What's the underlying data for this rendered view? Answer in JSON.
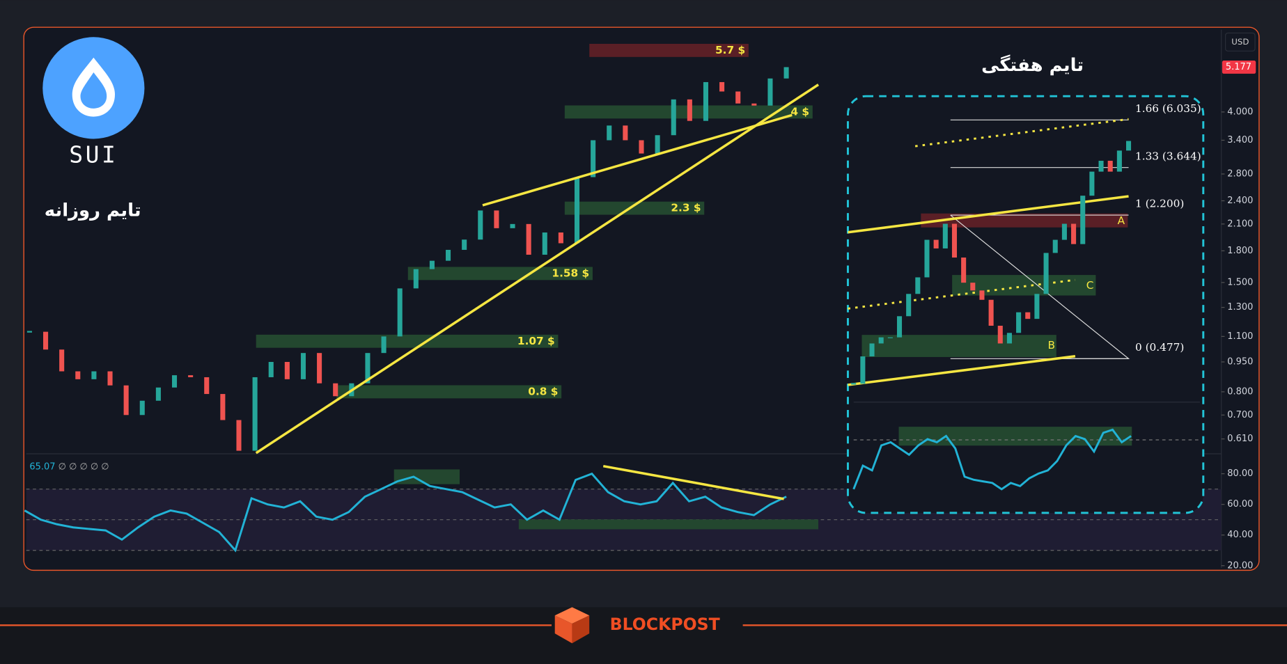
{
  "logo": {
    "text": "SUI"
  },
  "daily_label": "تایم روزانه",
  "brand": "BLOCKPOST",
  "currency": "USD",
  "chart_data": [
    {
      "type": "candlestick",
      "log_scale": true,
      "values": [
        1.13,
        1.02,
        0.9,
        0.86,
        0.9,
        0.83,
        0.7,
        0.76,
        0.82,
        0.88,
        0.87,
        0.79,
        0.68,
        0.57,
        0.87,
        0.95,
        0.86,
        1.0,
        0.84,
        0.78,
        0.84,
        1.0,
        1.1,
        1.45,
        1.62,
        1.7,
        1.81,
        1.92,
        2.27,
        2.05,
        2.1,
        1.76,
        2.0,
        1.88,
        2.75,
        3.4,
        3.7,
        3.4,
        3.15,
        3.5,
        4.3,
        3.8,
        4.75,
        4.5,
        4.2,
        4.15,
        4.85,
        5.177
      ],
      "last_price": 5.177,
      "ylim": [
        0.56,
        6.3
      ],
      "yticks": [
        {
          "value": 0.61,
          "label": "0.610"
        },
        {
          "value": 0.7,
          "label": "0.700"
        },
        {
          "value": 0.8,
          "label": "0.800"
        },
        {
          "value": 0.95,
          "label": "0.950"
        },
        {
          "value": 1.1,
          "label": "1.100"
        },
        {
          "value": 1.3,
          "label": "1.300"
        },
        {
          "value": 1.5,
          "label": "1.500"
        },
        {
          "value": 1.8,
          "label": "1.800"
        },
        {
          "value": 2.1,
          "label": "2.100"
        },
        {
          "value": 2.4,
          "label": "2.400"
        },
        {
          "value": 2.8,
          "label": "2.800"
        },
        {
          "value": 3.4,
          "label": "3.400"
        },
        {
          "value": 4,
          "label": "4.000"
        }
      ],
      "grid": false,
      "zones": [
        {
          "value": 5.7,
          "label": "5.7 $",
          "color": "#5a1f26"
        },
        {
          "value": 4,
          "label": "4 $",
          "color": "#23472f"
        },
        {
          "value": 2.3,
          "label": "2.3 $",
          "color": "#23472f"
        },
        {
          "value": 1.58,
          "label": "1.58 $",
          "color": "#23472f"
        },
        {
          "value": 1.07,
          "label": "1.07 $",
          "color": "#23472f"
        },
        {
          "value": 0.8,
          "label": "0.8 $",
          "color": "#23472f"
        }
      ],
      "up_color": "#26a69a",
      "down_color": "#ef5350"
    },
    {
      "type": "line",
      "color": "#22b3d6",
      "values": [
        56,
        50,
        47,
        45,
        44,
        43,
        37,
        45,
        52,
        56,
        54,
        48,
        42,
        30,
        64,
        60,
        58,
        62,
        52,
        50,
        55,
        65,
        70,
        75,
        78,
        72,
        70,
        68,
        63,
        58,
        60,
        50,
        56,
        50,
        76,
        80,
        68,
        62,
        60,
        62,
        74,
        62,
        65,
        58,
        55,
        53,
        60,
        65.07
      ],
      "last_value": 65.07,
      "indicator_values": "∅ ∅ ∅ ∅ ∅",
      "ylim": [
        17,
        93
      ],
      "yticks": [
        {
          "value": 20,
          "label": "20.00"
        },
        {
          "value": 40,
          "label": "40.00"
        },
        {
          "value": 60,
          "label": "60.00"
        },
        {
          "value": 80,
          "label": "80.00"
        }
      ],
      "bands": [
        30,
        50,
        70
      ]
    },
    {
      "type": "candlestick",
      "log_scale": true,
      "title": "تایم هفتگی",
      "values": [
        0.85,
        1.0,
        1.08,
        1.12,
        1.12,
        1.27,
        1.45,
        1.6,
        2.0,
        1.9,
        2.2,
        1.8,
        1.55,
        1.48,
        1.4,
        1.2,
        1.08,
        1.15,
        1.3,
        1.25,
        1.45,
        1.85,
        2.0,
        2.2,
        1.95,
        2.6,
        3.0,
        3.2,
        3.0,
        3.4,
        3.6
      ],
      "ylim": [
        0.8,
        4.2
      ],
      "fib_levels": [
        "1.66 (6.035)",
        "1.33 (3.644)",
        "1 (2.200)",
        "0 (0.477)"
      ],
      "points": [
        "A",
        "B",
        "C"
      ],
      "up_color": "#26a69a",
      "down_color": "#ef5350"
    },
    {
      "type": "line",
      "color": "#22b3d6",
      "values": [
        40,
        55,
        52,
        68,
        70,
        66,
        62,
        68,
        72,
        70,
        74,
        66,
        48,
        46,
        45,
        44,
        40,
        44,
        42,
        47,
        50,
        52,
        58,
        68,
        74,
        72,
        64,
        76,
        78,
        70,
        74
      ],
      "ylim": [
        17,
        93
      ]
    }
  ]
}
